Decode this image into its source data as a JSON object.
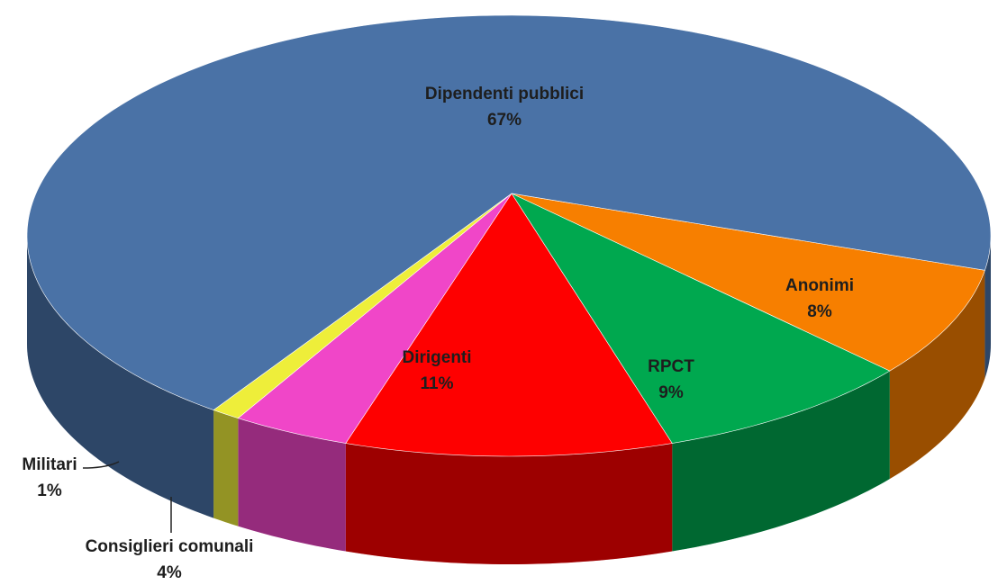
{
  "chart_data": {
    "type": "pie3d",
    "categories": [
      "Anonimi",
      "RPCT",
      "Dirigenti",
      "Consiglieri comunali",
      "Militari",
      "Dipendenti pubblici"
    ],
    "values": [
      8,
      9,
      11,
      4,
      1,
      67
    ],
    "value_labels": [
      "8%",
      "9%",
      "11%",
      "4%",
      "1%",
      "67%"
    ],
    "colors": [
      "#f77f00",
      "#00a84f",
      "#fe0000",
      "#f046c8",
      "#eeee3a",
      "#4a72a6"
    ]
  }
}
